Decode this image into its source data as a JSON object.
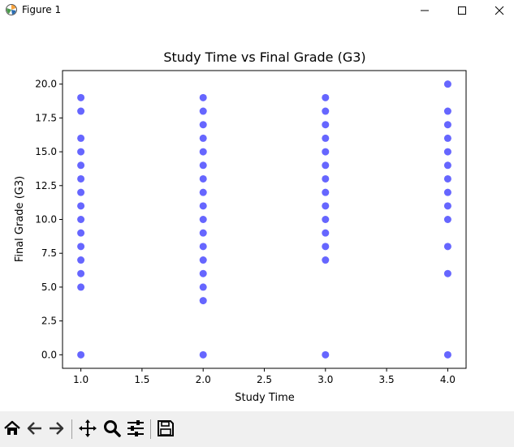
{
  "window": {
    "title": "Figure 1"
  },
  "toolbar": {
    "icons": [
      "home-icon",
      "back-icon",
      "forward-icon",
      "pan-icon",
      "zoom-icon",
      "configure-subplots-icon",
      "save-icon"
    ]
  },
  "colors": {
    "point": "#0000ff",
    "toolbar_bg": "#f0f0f0"
  },
  "chart_data": {
    "type": "scatter",
    "title": "Study Time vs Final Grade (G3)",
    "xlabel": "Study Time",
    "ylabel": "Final Grade (G3)",
    "xlim": [
      0.85,
      4.15
    ],
    "ylim": [
      -1.0,
      21.0
    ],
    "xticks": [
      "1.0",
      "1.5",
      "2.0",
      "2.5",
      "3.0",
      "3.5",
      "4.0"
    ],
    "yticks": [
      "0.0",
      "2.5",
      "5.0",
      "7.5",
      "10.0",
      "12.5",
      "15.0",
      "17.5",
      "20.0"
    ],
    "grid": false,
    "alpha": 0.6,
    "series": [
      {
        "points": [
          [
            1,
            0
          ],
          [
            1,
            5
          ],
          [
            1,
            6
          ],
          [
            1,
            7
          ],
          [
            1,
            8
          ],
          [
            1,
            9
          ],
          [
            1,
            10
          ],
          [
            1,
            11
          ],
          [
            1,
            12
          ],
          [
            1,
            13
          ],
          [
            1,
            14
          ],
          [
            1,
            15
          ],
          [
            1,
            16
          ],
          [
            1,
            18
          ],
          [
            1,
            19
          ],
          [
            2,
            0
          ],
          [
            2,
            4
          ],
          [
            2,
            5
          ],
          [
            2,
            6
          ],
          [
            2,
            7
          ],
          [
            2,
            8
          ],
          [
            2,
            9
          ],
          [
            2,
            10
          ],
          [
            2,
            11
          ],
          [
            2,
            12
          ],
          [
            2,
            13
          ],
          [
            2,
            14
          ],
          [
            2,
            15
          ],
          [
            2,
            16
          ],
          [
            2,
            17
          ],
          [
            2,
            18
          ],
          [
            2,
            19
          ],
          [
            3,
            0
          ],
          [
            3,
            7
          ],
          [
            3,
            8
          ],
          [
            3,
            9
          ],
          [
            3,
            10
          ],
          [
            3,
            11
          ],
          [
            3,
            12
          ],
          [
            3,
            13
          ],
          [
            3,
            14
          ],
          [
            3,
            15
          ],
          [
            3,
            16
          ],
          [
            3,
            17
          ],
          [
            3,
            18
          ],
          [
            3,
            19
          ],
          [
            4,
            0
          ],
          [
            4,
            6
          ],
          [
            4,
            8
          ],
          [
            4,
            10
          ],
          [
            4,
            11
          ],
          [
            4,
            12
          ],
          [
            4,
            13
          ],
          [
            4,
            14
          ],
          [
            4,
            15
          ],
          [
            4,
            16
          ],
          [
            4,
            17
          ],
          [
            4,
            18
          ],
          [
            4,
            20
          ]
        ]
      }
    ]
  }
}
